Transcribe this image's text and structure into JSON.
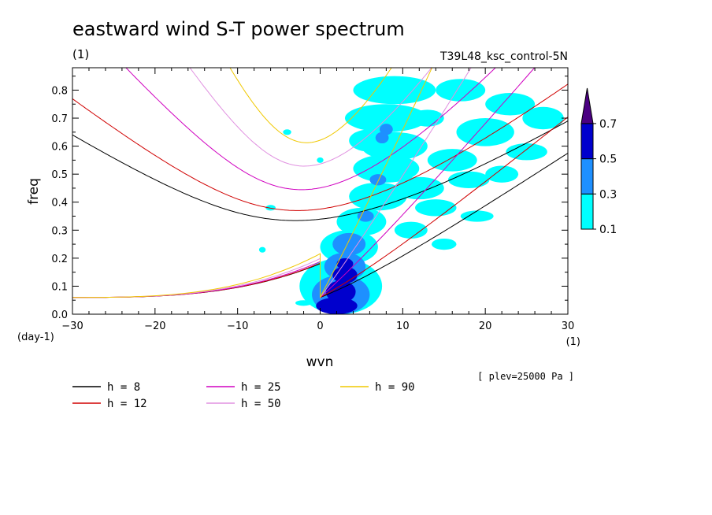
{
  "chart_data": {
    "type": "contour",
    "title": "eastward wind S-T power spectrum",
    "subtitle_left": "(1)",
    "subtitle_right": "T39L48_ksc_control-5N",
    "xlabel": "wvn",
    "ylabel": "freq",
    "x_unit": "(1)",
    "y_unit": "(day-1)",
    "xlim": [
      -30,
      30
    ],
    "ylim": [
      0,
      0.88
    ],
    "x_ticks": [
      "-30",
      "-20",
      "-10",
      "0",
      "10",
      "20",
      "30"
    ],
    "y_ticks": [
      "0.0",
      "0.1",
      "0.2",
      "0.3",
      "0.4",
      "0.5",
      "0.6",
      "0.7",
      "0.8"
    ],
    "annotation": "[ plev=25000 Pa ]",
    "colorbar": {
      "levels": [
        "0.1",
        "0.3",
        "0.5",
        "0.7"
      ],
      "colors": [
        "#00ffff",
        "#1e90ff",
        "#0000cd",
        "#4b0082"
      ]
    },
    "dispersion_curves": [
      {
        "label": "h =  8",
        "h": 8,
        "color": "#000000"
      },
      {
        "label": "h = 12",
        "h": 12,
        "color": "#d00000"
      },
      {
        "label": "h = 25",
        "h": 25,
        "color": "#d000c0"
      },
      {
        "label": "h = 50",
        "h": 50,
        "color": "#e090e0"
      },
      {
        "label": "h = 90",
        "h": 90,
        "color": "#f0c800"
      }
    ],
    "spectrum_blobs": [
      {
        "x": 2.0,
        "y": 0.03,
        "rx": 2.5,
        "ry": 0.03,
        "level": 3
      },
      {
        "x": 2.5,
        "y": 0.08,
        "rx": 1.8,
        "ry": 0.04,
        "level": 3
      },
      {
        "x": 3.0,
        "y": 0.14,
        "rx": 1.5,
        "ry": 0.03,
        "level": 3
      },
      {
        "x": 3.0,
        "y": 0.18,
        "rx": 1.0,
        "ry": 0.02,
        "level": 3
      },
      {
        "x": 2.5,
        "y": 0.07,
        "rx": 3.5,
        "ry": 0.07,
        "level": 2
      },
      {
        "x": 3.0,
        "y": 0.17,
        "rx": 2.5,
        "ry": 0.05,
        "level": 2
      },
      {
        "x": 3.5,
        "y": 0.25,
        "rx": 2.0,
        "ry": 0.04,
        "level": 2
      },
      {
        "x": 7.0,
        "y": 0.48,
        "rx": 1.0,
        "ry": 0.02,
        "level": 2
      },
      {
        "x": 8.0,
        "y": 0.66,
        "rx": 0.8,
        "ry": 0.02,
        "level": 2
      },
      {
        "x": 7.5,
        "y": 0.63,
        "rx": 0.8,
        "ry": 0.02,
        "level": 2
      },
      {
        "x": 5.5,
        "y": 0.35,
        "rx": 1.0,
        "ry": 0.02,
        "level": 2
      },
      {
        "x": 2.5,
        "y": 0.1,
        "rx": 5.0,
        "ry": 0.1,
        "level": 1
      },
      {
        "x": 3.5,
        "y": 0.24,
        "rx": 3.5,
        "ry": 0.06,
        "level": 1
      },
      {
        "x": 5.0,
        "y": 0.33,
        "rx": 3.0,
        "ry": 0.05,
        "level": 1
      },
      {
        "x": 7.0,
        "y": 0.42,
        "rx": 3.5,
        "ry": 0.05,
        "level": 1
      },
      {
        "x": 8.0,
        "y": 0.52,
        "rx": 4.0,
        "ry": 0.05,
        "level": 1
      },
      {
        "x": 9.0,
        "y": 0.6,
        "rx": 4.0,
        "ry": 0.05,
        "level": 1
      },
      {
        "x": 8.0,
        "y": 0.7,
        "rx": 5.0,
        "ry": 0.05,
        "level": 1
      },
      {
        "x": 9.0,
        "y": 0.8,
        "rx": 5.0,
        "ry": 0.05,
        "level": 1
      },
      {
        "x": 12.0,
        "y": 0.45,
        "rx": 3.0,
        "ry": 0.04,
        "level": 1
      },
      {
        "x": 14.0,
        "y": 0.38,
        "rx": 2.5,
        "ry": 0.03,
        "level": 1
      },
      {
        "x": 16.0,
        "y": 0.55,
        "rx": 3.0,
        "ry": 0.04,
        "level": 1
      },
      {
        "x": 18.0,
        "y": 0.48,
        "rx": 2.5,
        "ry": 0.03,
        "level": 1
      },
      {
        "x": 20.0,
        "y": 0.65,
        "rx": 3.5,
        "ry": 0.05,
        "level": 1
      },
      {
        "x": 23.0,
        "y": 0.75,
        "rx": 3.0,
        "ry": 0.04,
        "level": 1
      },
      {
        "x": 25.0,
        "y": 0.58,
        "rx": 2.5,
        "ry": 0.03,
        "level": 1
      },
      {
        "x": 22.0,
        "y": 0.5,
        "rx": 2.0,
        "ry": 0.03,
        "level": 1
      },
      {
        "x": 27.0,
        "y": 0.7,
        "rx": 2.5,
        "ry": 0.04,
        "level": 1
      },
      {
        "x": 17.0,
        "y": 0.8,
        "rx": 3.0,
        "ry": 0.04,
        "level": 1
      },
      {
        "x": 6.0,
        "y": 0.62,
        "rx": 2.5,
        "ry": 0.04,
        "level": 1
      },
      {
        "x": 11.0,
        "y": 0.3,
        "rx": 2.0,
        "ry": 0.03,
        "level": 1
      },
      {
        "x": 15.0,
        "y": 0.25,
        "rx": 1.5,
        "ry": 0.02,
        "level": 1
      },
      {
        "x": 19.0,
        "y": 0.35,
        "rx": 2.0,
        "ry": 0.02,
        "level": 1
      },
      {
        "x": -6.0,
        "y": 0.38,
        "rx": 0.6,
        "ry": 0.01,
        "level": 1
      },
      {
        "x": -4.0,
        "y": 0.65,
        "rx": 0.5,
        "ry": 0.01,
        "level": 1
      },
      {
        "x": -2.0,
        "y": 0.04,
        "rx": 1.0,
        "ry": 0.01,
        "level": 1
      },
      {
        "x": -7.0,
        "y": 0.23,
        "rx": 0.4,
        "ry": 0.01,
        "level": 1
      },
      {
        "x": 0.0,
        "y": 0.55,
        "rx": 0.4,
        "ry": 0.01,
        "level": 1
      },
      {
        "x": 13.0,
        "y": 0.7,
        "rx": 2.0,
        "ry": 0.03,
        "level": 1
      }
    ]
  }
}
